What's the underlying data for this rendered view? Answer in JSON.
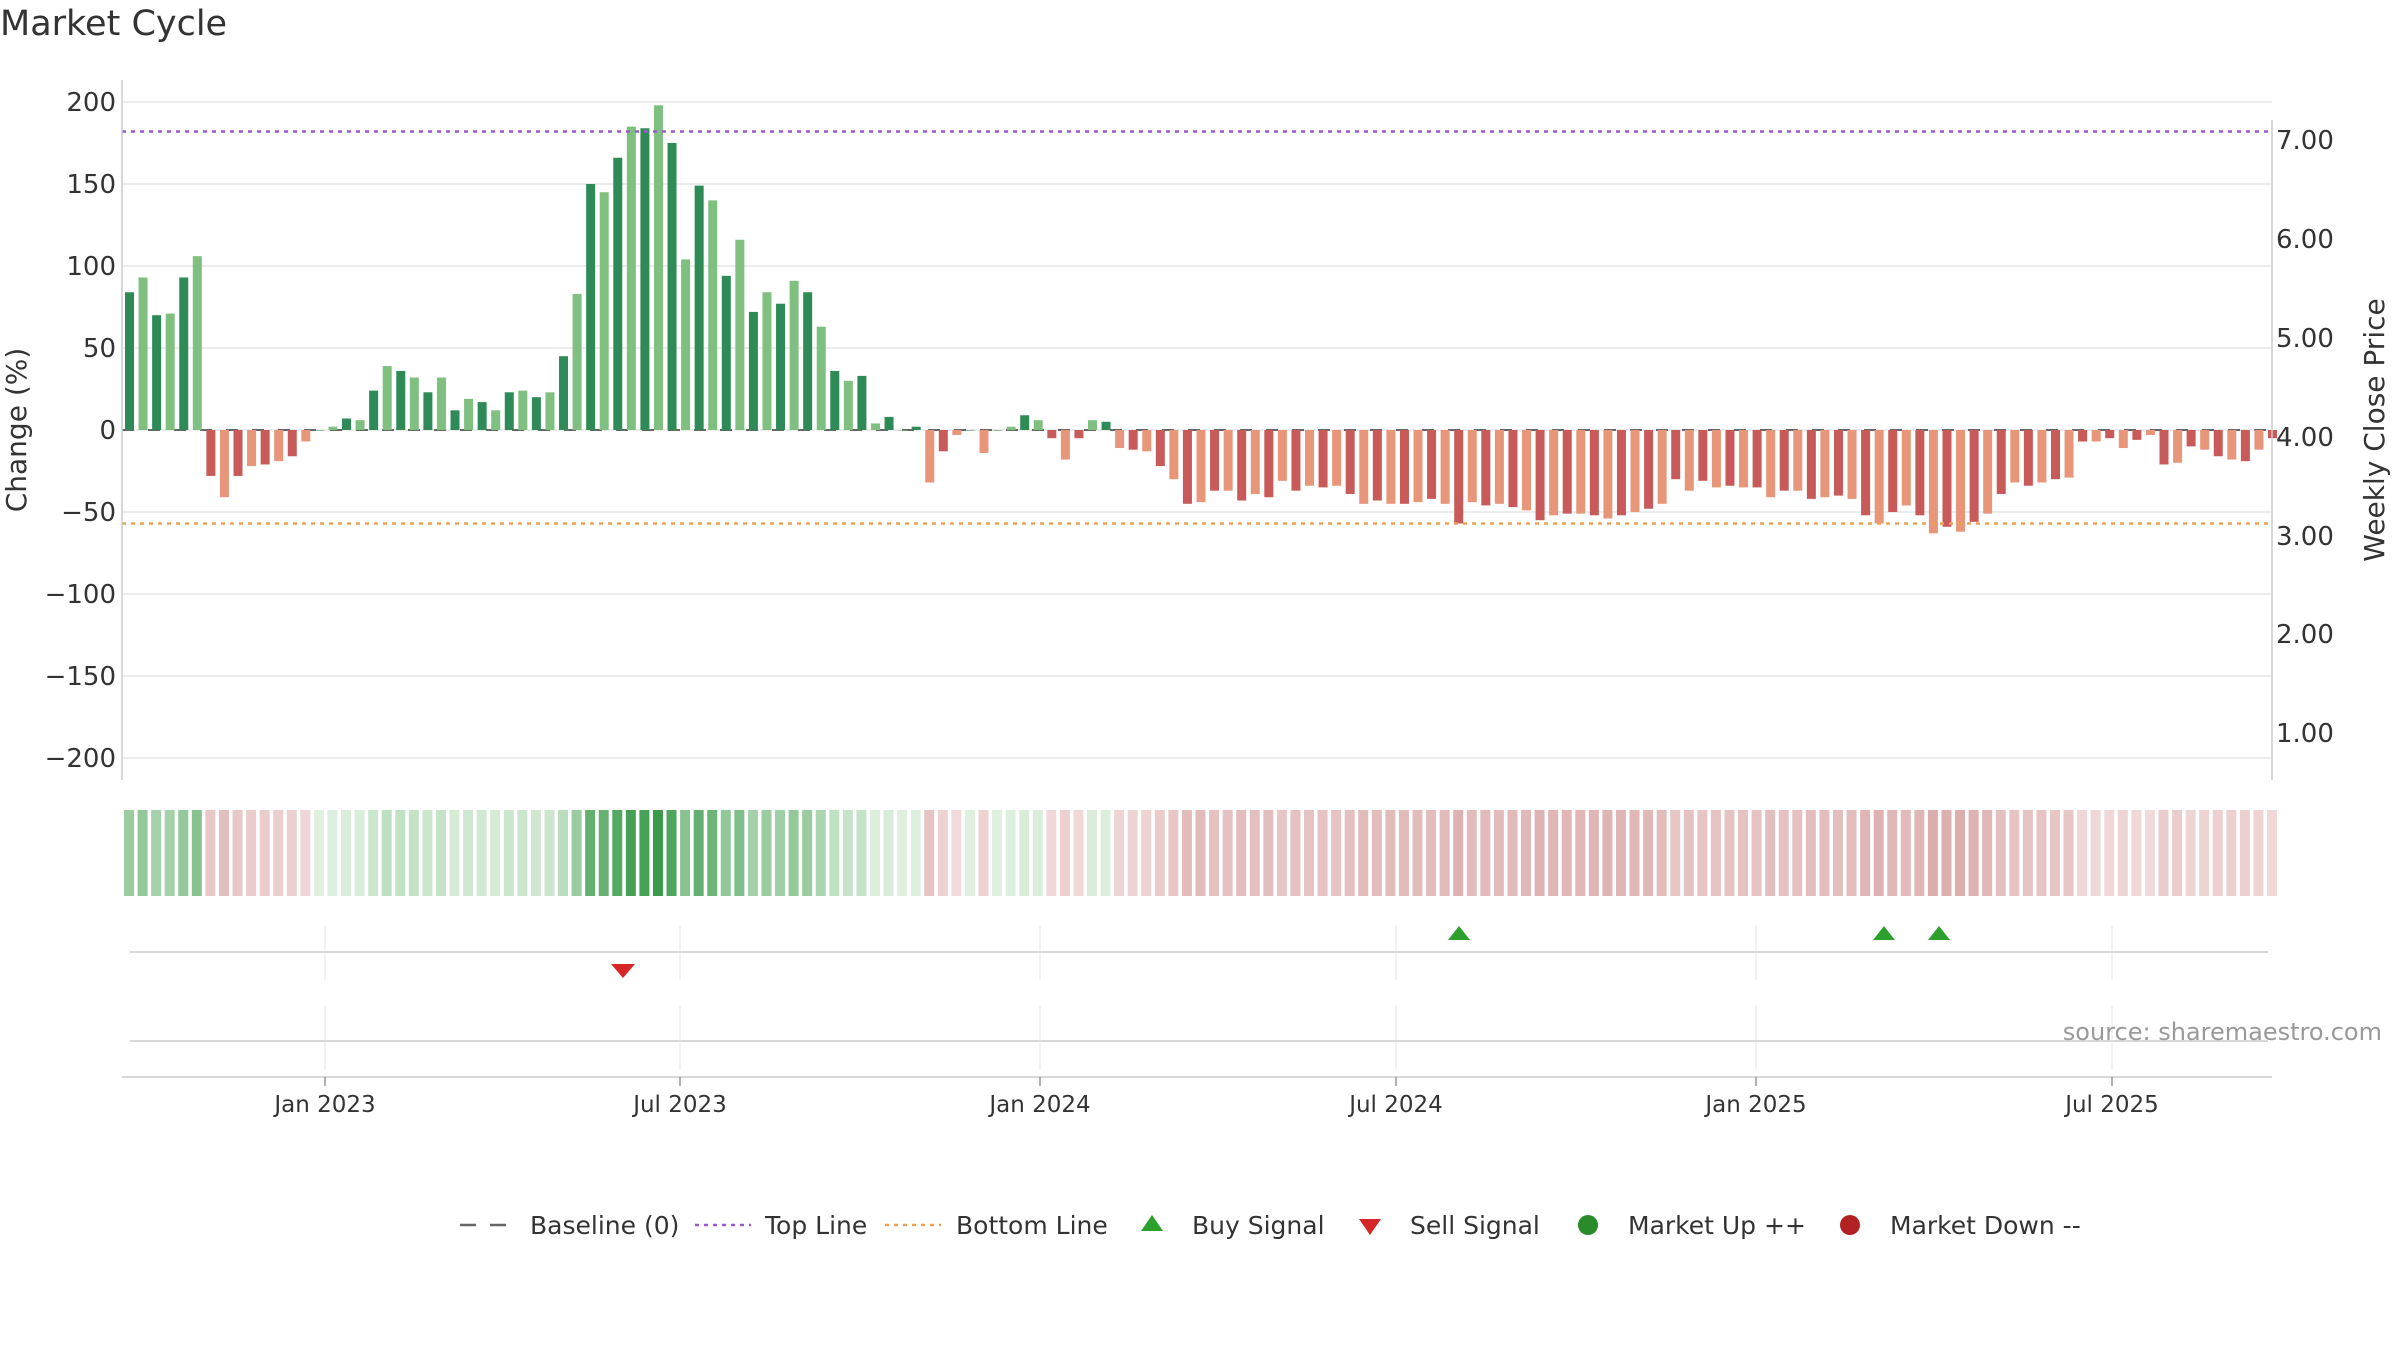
{
  "chart_data": {
    "type": "bar",
    "title": "Market Cycle",
    "ylabel_left": "Change (%)",
    "ylabel_right": "Weekly Close Price",
    "source": "source: sharemaestro.com",
    "y_left": {
      "range": [
        -200,
        200
      ],
      "ticks": [
        200,
        150,
        100,
        50,
        0,
        -50,
        -100,
        -150,
        -200
      ]
    },
    "y_right": {
      "ticks": [
        "7.00",
        "6.00",
        "5.00",
        "4.00",
        "3.00",
        "2.00",
        "1.00"
      ]
    },
    "x_ticks": [
      "Jan 2023",
      "Jul 2023",
      "Jan 2024",
      "Jul 2024",
      "Jan 2025",
      "Jul 2025"
    ],
    "top_line": 182,
    "bottom_line": -57,
    "values": [
      84,
      93,
      70,
      71,
      93,
      106,
      -28,
      -41,
      -28,
      -22,
      -21,
      -19,
      -16,
      -7,
      0,
      2,
      7,
      6,
      24,
      39,
      36,
      32,
      23,
      32,
      12,
      19,
      17,
      12,
      23,
      24,
      20,
      23,
      45,
      83,
      150,
      145,
      166,
      185,
      184,
      198,
      175,
      104,
      149,
      140,
      94,
      116,
      72,
      84,
      77,
      91,
      84,
      63,
      36,
      30,
      33,
      4,
      8,
      0,
      2,
      -32,
      -13,
      -3,
      0,
      -14,
      0,
      2,
      9,
      6,
      -5,
      -18,
      -5,
      6,
      5,
      -11,
      -12,
      -13,
      -22,
      -30,
      -45,
      -44,
      -37,
      -37,
      -43,
      -39,
      -41,
      -31,
      -37,
      -34,
      -35,
      -34,
      -39,
      -45,
      -43,
      -45,
      -45,
      -44,
      -42,
      -45,
      -57,
      -44,
      -46,
      -45,
      -47,
      -49,
      -55,
      -52,
      -51,
      -51,
      -52,
      -54,
      -52,
      -50,
      -48,
      -45,
      -30,
      -37,
      -31,
      -35,
      -34,
      -35,
      -35,
      -41,
      -37,
      -37,
      -42,
      -41,
      -40,
      -42,
      -52,
      -57,
      -50,
      -46,
      -52,
      -63,
      -59,
      -62,
      -56,
      -51,
      -39,
      -32,
      -34,
      -32,
      -30,
      -29,
      -7,
      -7,
      -5,
      -11,
      -6,
      -3,
      -21,
      -20,
      -10,
      -12,
      -16,
      -18,
      -19,
      -12,
      -5
    ],
    "buy_signals": [
      "Jul 2024",
      "Mar 2025",
      "Apr 2025"
    ],
    "sell_signals": [
      "Jun 2023"
    ],
    "legend": [
      "Baseline (0)",
      "Top Line",
      "Bottom Line",
      "Buy Signal",
      "Sell Signal",
      "Market Up ++",
      "Market Down --"
    ],
    "colors": {
      "up_dark": "#2e8b57",
      "up_light": "#7fbf7f",
      "down_dark": "#c85a5a",
      "down_light": "#e8967a",
      "top_line": "#9b59d0",
      "bottom_line": "#f0a050",
      "buy": "#2ca02c",
      "sell": "#d62728",
      "market_up": "#2a8b2a",
      "market_down": "#b22222"
    }
  }
}
